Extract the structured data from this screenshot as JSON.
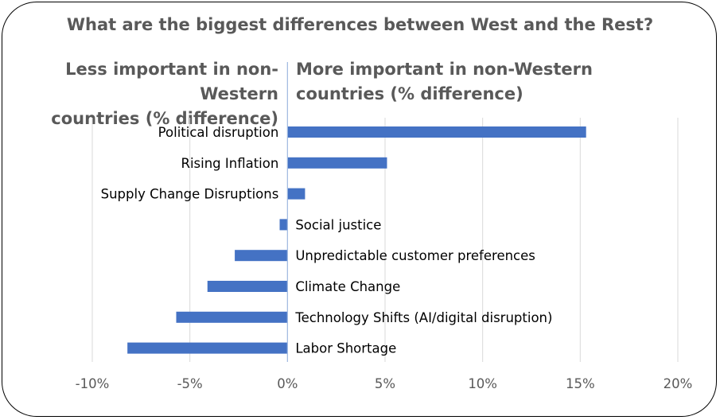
{
  "chart_data": {
    "type": "bar",
    "orientation": "horizontal",
    "title": "What are the biggest differences between West and the Rest?",
    "left_header": [
      "Less important in non-Western",
      "countries (% difference)"
    ],
    "right_header": [
      "More important in non-Western",
      "countries (% difference)"
    ],
    "categories": [
      "Political disruption",
      "Rising Inflation",
      "Supply Change Disruptions",
      "Social justice",
      "Unpredictable customer preferences",
      "Climate Change",
      "Technology Shifts (AI/digital disruption)",
      "Labor Shortage"
    ],
    "values": [
      15.3,
      5.1,
      0.9,
      -0.4,
      -2.7,
      -4.1,
      -5.7,
      -8.2
    ],
    "xlim": [
      -10,
      20
    ],
    "xticks": [
      -10,
      -5,
      0,
      5,
      10,
      15,
      20
    ],
    "tick_labels": [
      "-10%",
      "-5%",
      "0%",
      "5%",
      "10%",
      "15%",
      "20%"
    ],
    "grid": "vertical",
    "bar_color": "#4472C4",
    "grid_color": "#D9D9D9",
    "axis_color": "#9DB7E0"
  }
}
